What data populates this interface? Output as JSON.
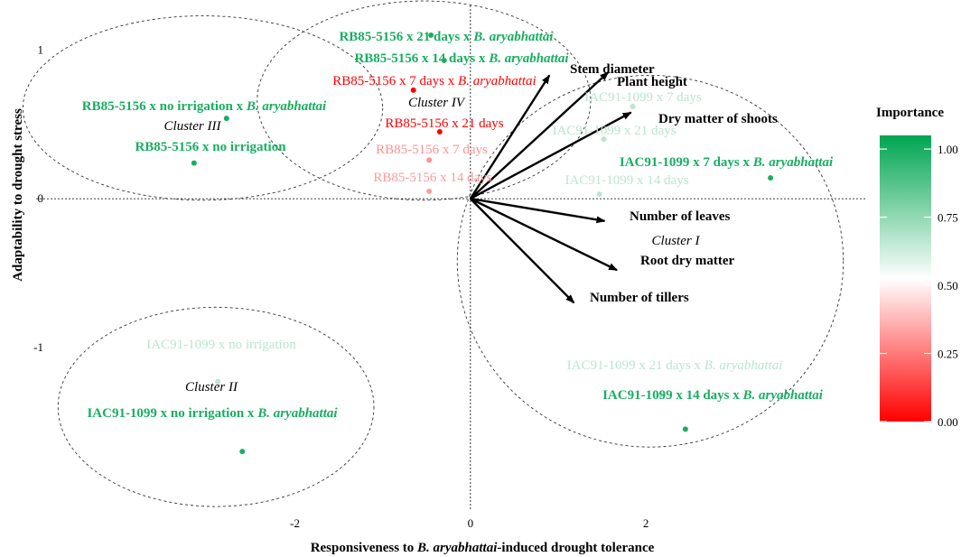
{
  "chart_data": {
    "type": "scatter",
    "xlabel": {
      "before": "Responsiveness to ",
      "italic": "B. aryabhattai",
      "after": "-induced drought tolerance"
    },
    "ylabel": "Adaptability to drought stress",
    "xlim": [
      -4.95,
      4.5
    ],
    "ylim": [
      -2.1,
      1.3
    ],
    "xticks": [
      -2,
      0,
      2
    ],
    "yticks": [
      -1,
      0,
      1
    ],
    "points": [
      {
        "label": "RB85-5156 x 21 days x ",
        "italic": "B. aryabhattai",
        "x": -0.45,
        "y": 1.1,
        "importance": 1.0,
        "bold": true
      },
      {
        "label": "RB85-5156 x 14 days x ",
        "italic": "B. aryabhattai",
        "x": -0.3,
        "y": 0.93,
        "importance": 1.0,
        "bold": true
      },
      {
        "label": "RB85-5156 x 7 days x ",
        "italic": "B. aryabhattai",
        "x": -0.65,
        "y": 0.73,
        "importance": 0.0,
        "bold": false
      },
      {
        "label": "RB85-5156 x no irrigation  x ",
        "italic": "B. aryabhattai",
        "x": -2.78,
        "y": 0.54,
        "importance": 1.0,
        "bold": true
      },
      {
        "label": "RB85-5156 x no irrigation",
        "italic": "",
        "x": -3.15,
        "y": 0.24,
        "importance": 1.0,
        "bold": true
      },
      {
        "label": "RB85-5156 x 21 days",
        "italic": "",
        "x": -0.35,
        "y": 0.45,
        "importance": 0.0,
        "bold": false
      },
      {
        "label": "RB85-5156 x 7 days",
        "italic": "",
        "x": -0.47,
        "y": 0.26,
        "importance": 0.3,
        "bold": false
      },
      {
        "label": "RB85-5156 x 14 days",
        "italic": "",
        "x": -0.47,
        "y": 0.05,
        "importance": 0.32,
        "bold": false
      },
      {
        "label": "IAC91-1099 x 7 days",
        "italic": "",
        "x": 1.85,
        "y": 0.62,
        "importance": 0.67,
        "bold": false
      },
      {
        "label": "IAC91-1099 x 21 days",
        "italic": "",
        "x": 1.52,
        "y": 0.4,
        "importance": 0.67,
        "bold": false
      },
      {
        "label": "IAC91-1099 x 7 days x ",
        "italic": "B. aryabhattai",
        "x": 3.42,
        "y": 0.14,
        "importance": 1.0,
        "bold": true
      },
      {
        "label": "IAC91-1099 x 14 days",
        "italic": "",
        "x": 1.47,
        "y": 0.03,
        "importance": 0.67,
        "bold": false
      },
      {
        "label": "IAC91-1099 x no irrigation",
        "italic": "",
        "x": -2.88,
        "y": -1.23,
        "importance": 0.67,
        "bold": false
      },
      {
        "label": "IAC91-1099 x no irrigation  x ",
        "italic": "B. aryabhattai",
        "x": -2.6,
        "y": -1.7,
        "importance": 1.0,
        "bold": true
      },
      {
        "label": "IAC91-1099 x 21 days x ",
        "italic": "B. aryabhattai",
        "x": 2.17,
        "y": -1.32,
        "importance": 0.67,
        "bold": false
      },
      {
        "label": "IAC91-1099 x 14 days x ",
        "italic": "B. aryabhattai",
        "x": 2.45,
        "y": -1.55,
        "importance": 1.0,
        "bold": true
      }
    ],
    "vectors": [
      {
        "label": "Stem diameter",
        "x": 0.9,
        "y": 0.83
      },
      {
        "label": "Plant height",
        "x": 1.57,
        "y": 0.85
      },
      {
        "label": "Dry matter of shoots",
        "x": 1.83,
        "y": 0.58
      },
      {
        "label": "Number of leaves",
        "x": 1.53,
        "y": -0.15
      },
      {
        "label": "Root dry matter",
        "x": 1.67,
        "y": -0.48
      },
      {
        "label": "Number of tillers",
        "x": 1.18,
        "y": -0.7
      }
    ],
    "clusters": [
      {
        "label": "Cluster I",
        "cx": 2.05,
        "cy": -0.42,
        "rx": 2.2,
        "ry": 1.25
      },
      {
        "label": "Cluster II",
        "cx": -2.9,
        "cy": -1.4,
        "rx": 1.8,
        "ry": 0.67
      },
      {
        "label": "Cluster III",
        "cx": -3.05,
        "cy": 0.61,
        "rx": 2.05,
        "ry": 0.62
      },
      {
        "label": "Cluster IV",
        "cx": -0.53,
        "cy": 0.66,
        "rx": 1.9,
        "ry": 0.67
      }
    ],
    "legend": {
      "title": "Importance",
      "ticks": [
        "1.00",
        "0.75",
        "0.50",
        "0.25",
        "0.00"
      ],
      "range": [
        0,
        1.05
      ],
      "position": "right",
      "colors": {
        "low": "#ff0000",
        "mid": "#ffffff",
        "high": "#00a550"
      }
    },
    "grid": false
  }
}
